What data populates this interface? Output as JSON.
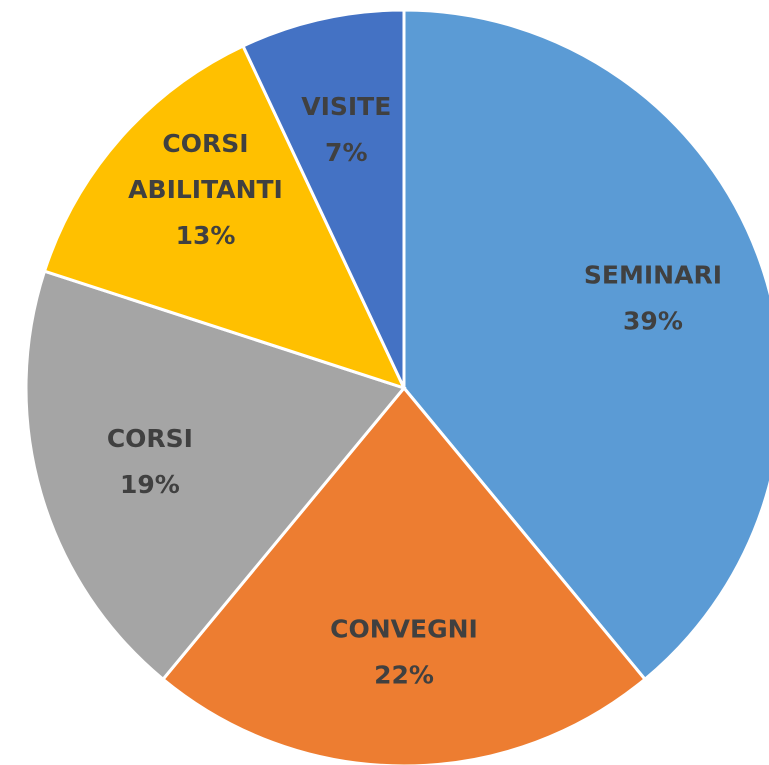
{
  "chart_data": {
    "type": "pie",
    "categories": [
      "SEMINARI",
      "CONVEGNI",
      "CORSI",
      "CORSI ABILITANTI",
      "VISITE"
    ],
    "values": [
      39,
      22,
      19,
      13,
      7
    ],
    "value_labels": [
      "39%",
      "22%",
      "19%",
      "13%",
      "7%"
    ],
    "colors": [
      "#5b9bd5",
      "#ed7d31",
      "#a5a5a5",
      "#ffc000",
      "#4472c4"
    ]
  }
}
